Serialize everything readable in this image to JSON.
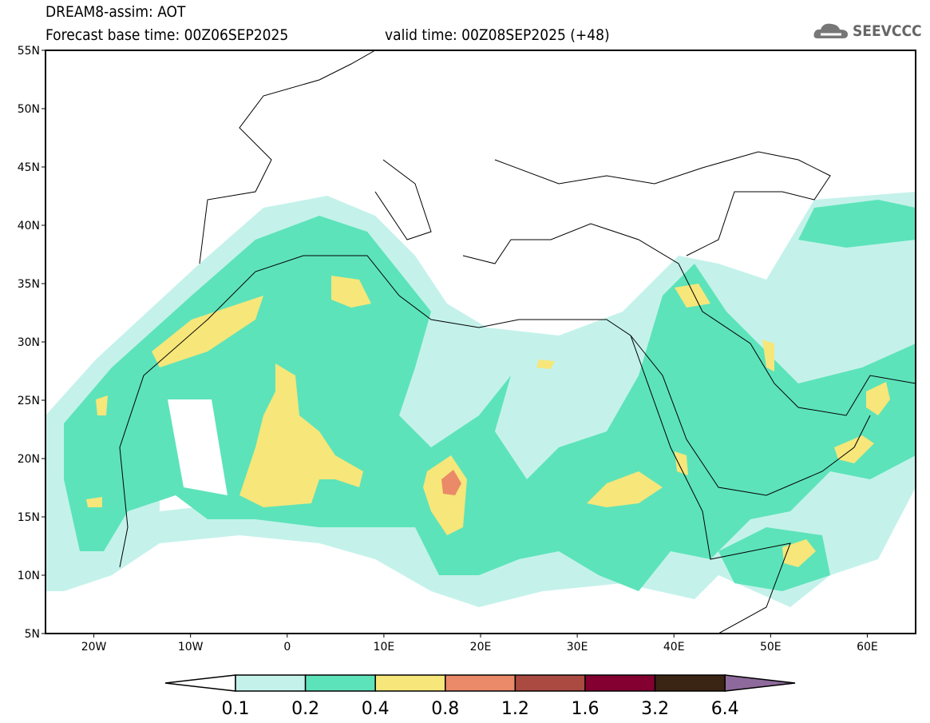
{
  "header": {
    "title": "DREAM8-assim: AOT",
    "base_time": "Forecast base time: 00Z06SEP2025",
    "valid_time": "valid time: 00Z08SEP2025 (+48)",
    "logo_text": "SEEVCCC"
  },
  "axes": {
    "lat_labels": [
      "55N",
      "50N",
      "45N",
      "40N",
      "35N",
      "30N",
      "25N",
      "20N",
      "15N",
      "10N",
      "5N"
    ],
    "lat_values": [
      55,
      50,
      45,
      40,
      35,
      30,
      25,
      20,
      15,
      10,
      5
    ],
    "lon_labels": [
      "20W",
      "10W",
      "0",
      "10E",
      "20E",
      "30E",
      "40E",
      "50E",
      "60E"
    ],
    "lon_values": [
      -20,
      -10,
      0,
      10,
      20,
      30,
      40,
      50,
      60
    ],
    "lon_range": [
      -25,
      65
    ],
    "lat_range": [
      5,
      55
    ]
  },
  "colorbar": {
    "labels": [
      "0.1",
      "0.2",
      "0.4",
      "0.8",
      "1.2",
      "1.6",
      "3.2",
      "6.4"
    ],
    "colors": [
      "#ffffff",
      "#c4f2eb",
      "#5de3b9",
      "#f7e67a",
      "#ea8a68",
      "#ab4a40",
      "#830030",
      "#3a2414",
      "#8e6a9c"
    ]
  }
}
